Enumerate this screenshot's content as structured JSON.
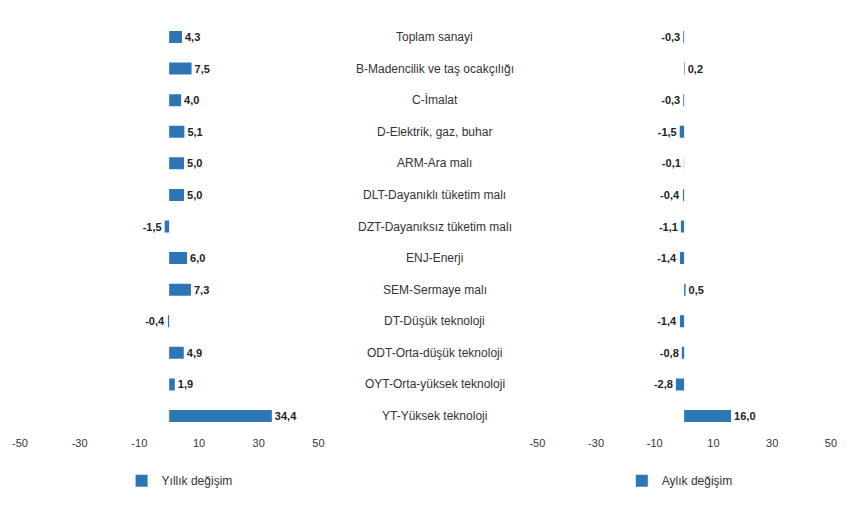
{
  "chart_data": [
    {
      "type": "bar",
      "orientation": "horizontal",
      "categories": [
        "Toplam sanayi",
        "B-Madencilik ve taş ocakçılığı",
        "C-İmalat",
        "D-Elektrik, gaz, buhar",
        "ARM-Ara malı",
        "DLT-Dayanıklı tüketim malı",
        "DZT-Dayanıksız tüketim malı",
        "ENJ-Enerji",
        "SEM-Sermaye malı",
        "DT-Düşük teknoloji",
        "ODT-Orta-düşük teknoloji",
        "OYT-Orta-yüksek teknoloji",
        "YT-Yüksek teknoloji"
      ],
      "series": [
        {
          "name": "Yıllık değişim",
          "color": "#2e75b6",
          "values": [
            4.3,
            7.5,
            4.0,
            5.1,
            5.0,
            5.0,
            -1.5,
            6.0,
            7.3,
            -0.4,
            4.9,
            1.9,
            34.4
          ],
          "value_labels": [
            "4,3",
            "7,5",
            "4,0",
            "5,1",
            "5,0",
            "5,0",
            "-1,5",
            "6,0",
            "7,3",
            "-0,4",
            "4,9",
            "1,9",
            "34,4"
          ]
        }
      ],
      "xlim": [
        -50,
        50
      ],
      "xticks": [
        -50,
        -30,
        -10,
        10,
        30,
        50
      ],
      "grid": false,
      "data_labels": true,
      "tick_labels": "x",
      "legend": "bottom"
    },
    {
      "type": "bar",
      "orientation": "horizontal",
      "categories": [
        "Toplam sanayi",
        "B-Madencilik ve taş ocakçılığı",
        "C-İmalat",
        "D-Elektrik, gaz, buhar",
        "ARM-Ara malı",
        "DLT-Dayanıklı tüketim malı",
        "DZT-Dayanıksız tüketim malı",
        "ENJ-Enerji",
        "SEM-Sermaye malı",
        "DT-Düşük teknoloji",
        "ODT-Orta-düşük teknoloji",
        "OYT-Orta-yüksek teknoloji",
        "YT-Yüksek teknoloji"
      ],
      "series": [
        {
          "name": "Aylık değişim",
          "color": "#2e75b6",
          "values": [
            -0.3,
            0.2,
            -0.3,
            -1.5,
            -0.1,
            -0.4,
            -1.1,
            -1.4,
            0.5,
            -1.4,
            -0.8,
            -2.8,
            16.0
          ],
          "value_labels": [
            "-0,3",
            "0,2",
            "-0,3",
            "-1,5",
            "-0,1",
            "-0,4",
            "-1,1",
            "-1,4",
            "0,5",
            "-1,4",
            "-0,8",
            "-2,8",
            "16,0"
          ]
        }
      ],
      "xlim": [
        -50,
        50
      ],
      "xticks": [
        -50,
        -30,
        -10,
        10,
        30,
        50
      ],
      "grid": false,
      "data_labels": true,
      "tick_labels": "x",
      "legend": "bottom"
    }
  ]
}
